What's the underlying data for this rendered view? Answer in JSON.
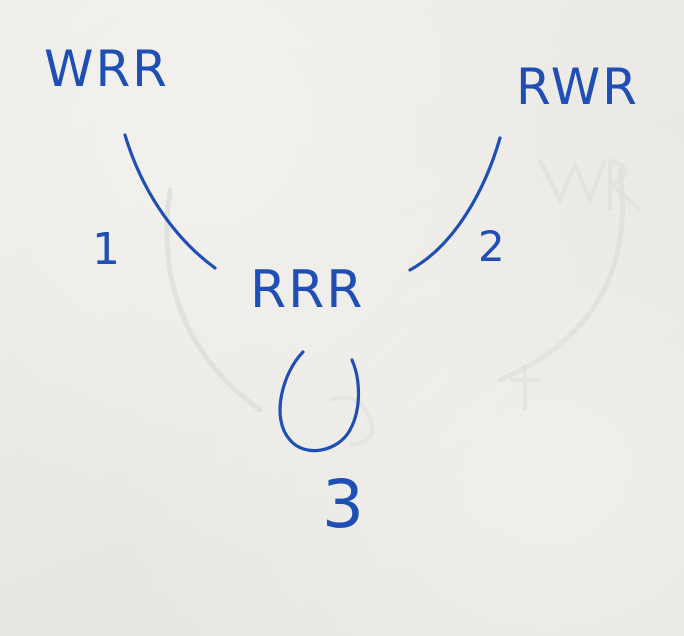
{
  "colors": {
    "ink": "#1f4fb4",
    "paper": "#ecebe7",
    "bleed_through": "#d9d8d3"
  },
  "nodes": {
    "top_left": "WRR",
    "top_right": "RWR",
    "center": "RRR"
  },
  "edges": [
    {
      "from": "WRR",
      "to": "RRR",
      "label": "1"
    },
    {
      "from": "RWR",
      "to": "RRR",
      "label": "2"
    },
    {
      "from": "RRR",
      "to": "RRR",
      "label": "3"
    }
  ]
}
